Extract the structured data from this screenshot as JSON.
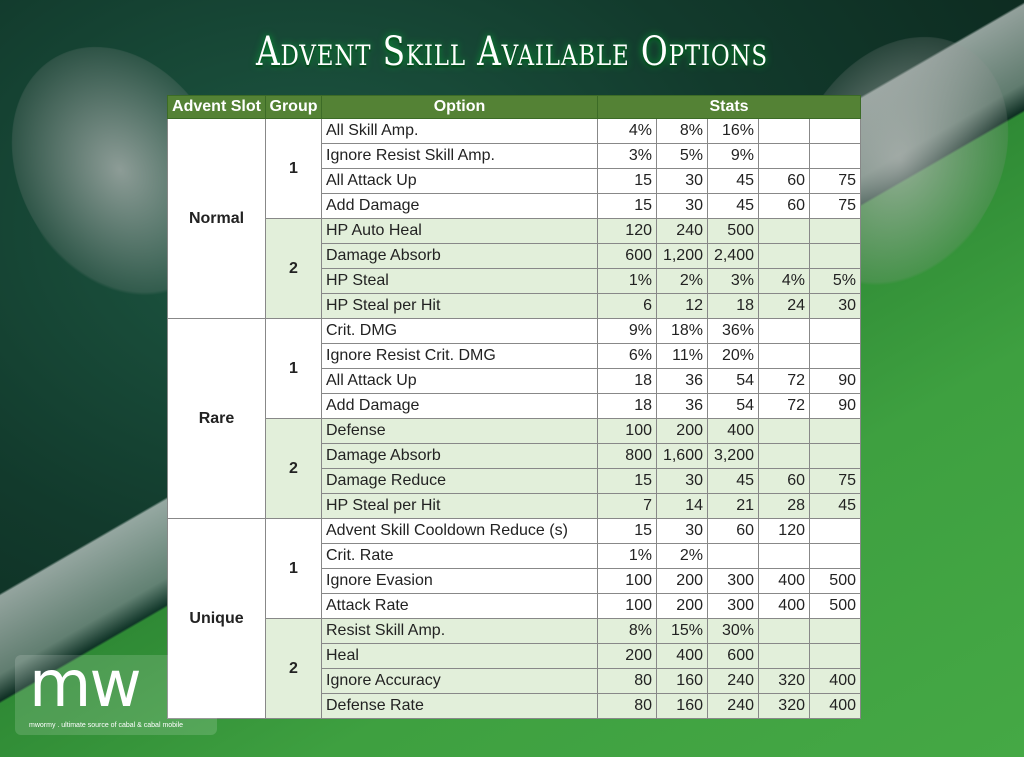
{
  "title": "Advent Skill Available Options",
  "headers": [
    "Advent Slot",
    "Group",
    "Option",
    "Stats"
  ],
  "slots": [
    {
      "name": "Normal",
      "groups": [
        {
          "group": "1",
          "rows": [
            {
              "option": "All Skill Amp.",
              "stats": [
                "4%",
                "8%",
                "16%",
                "",
                ""
              ]
            },
            {
              "option": "Ignore Resist Skill Amp.",
              "stats": [
                "3%",
                "5%",
                "9%",
                "",
                ""
              ]
            },
            {
              "option": "All Attack Up",
              "stats": [
                "15",
                "30",
                "45",
                "60",
                "75"
              ]
            },
            {
              "option": "Add Damage",
              "stats": [
                "15",
                "30",
                "45",
                "60",
                "75"
              ]
            }
          ]
        },
        {
          "group": "2",
          "rows": [
            {
              "option": "HP Auto Heal",
              "stats": [
                "120",
                "240",
                "500",
                "",
                ""
              ]
            },
            {
              "option": "Damage Absorb",
              "stats": [
                "600",
                "1,200",
                "2,400",
                "",
                ""
              ]
            },
            {
              "option": "HP Steal",
              "stats": [
                "1%",
                "2%",
                "3%",
                "4%",
                "5%"
              ]
            },
            {
              "option": "HP Steal per Hit",
              "stats": [
                "6",
                "12",
                "18",
                "24",
                "30"
              ]
            }
          ]
        }
      ]
    },
    {
      "name": "Rare",
      "groups": [
        {
          "group": "1",
          "rows": [
            {
              "option": "Crit. DMG",
              "stats": [
                "9%",
                "18%",
                "36%",
                "",
                ""
              ]
            },
            {
              "option": "Ignore Resist Crit. DMG",
              "stats": [
                "6%",
                "11%",
                "20%",
                "",
                ""
              ]
            },
            {
              "option": "All Attack Up",
              "stats": [
                "18",
                "36",
                "54",
                "72",
                "90"
              ]
            },
            {
              "option": "Add Damage",
              "stats": [
                "18",
                "36",
                "54",
                "72",
                "90"
              ]
            }
          ]
        },
        {
          "group": "2",
          "rows": [
            {
              "option": "Defense",
              "stats": [
                "100",
                "200",
                "400",
                "",
                ""
              ]
            },
            {
              "option": "Damage Absorb",
              "stats": [
                "800",
                "1,600",
                "3,200",
                "",
                ""
              ]
            },
            {
              "option": "Damage Reduce",
              "stats": [
                "15",
                "30",
                "45",
                "60",
                "75"
              ]
            },
            {
              "option": "HP Steal per Hit",
              "stats": [
                "7",
                "14",
                "21",
                "28",
                "45"
              ]
            }
          ]
        }
      ]
    },
    {
      "name": "Unique",
      "groups": [
        {
          "group": "1",
          "rows": [
            {
              "option": "Advent Skill Cooldown Reduce (s)",
              "stats": [
                "15",
                "30",
                "60",
                "120",
                ""
              ]
            },
            {
              "option": "Crit. Rate",
              "stats": [
                "1%",
                "2%",
                "",
                "",
                ""
              ]
            },
            {
              "option": "Ignore Evasion",
              "stats": [
                "100",
                "200",
                "300",
                "400",
                "500"
              ]
            },
            {
              "option": "Attack Rate",
              "stats": [
                "100",
                "200",
                "300",
                "400",
                "500"
              ]
            }
          ]
        },
        {
          "group": "2",
          "rows": [
            {
              "option": "Resist Skill Amp.",
              "stats": [
                "8%",
                "15%",
                "30%",
                "",
                ""
              ]
            },
            {
              "option": "Heal",
              "stats": [
                "200",
                "400",
                "600",
                "",
                ""
              ]
            },
            {
              "option": "Ignore Accuracy",
              "stats": [
                "80",
                "160",
                "240",
                "320",
                "400"
              ]
            },
            {
              "option": "Defense Rate",
              "stats": [
                "80",
                "160",
                "240",
                "320",
                "400"
              ]
            }
          ]
        }
      ]
    }
  ],
  "logo": {
    "mark": "mw",
    "tagline": "mwormy . ultimate source of cabal & cabal mobile"
  },
  "colors": {
    "header": "#548235",
    "group2": "#e2efda"
  }
}
